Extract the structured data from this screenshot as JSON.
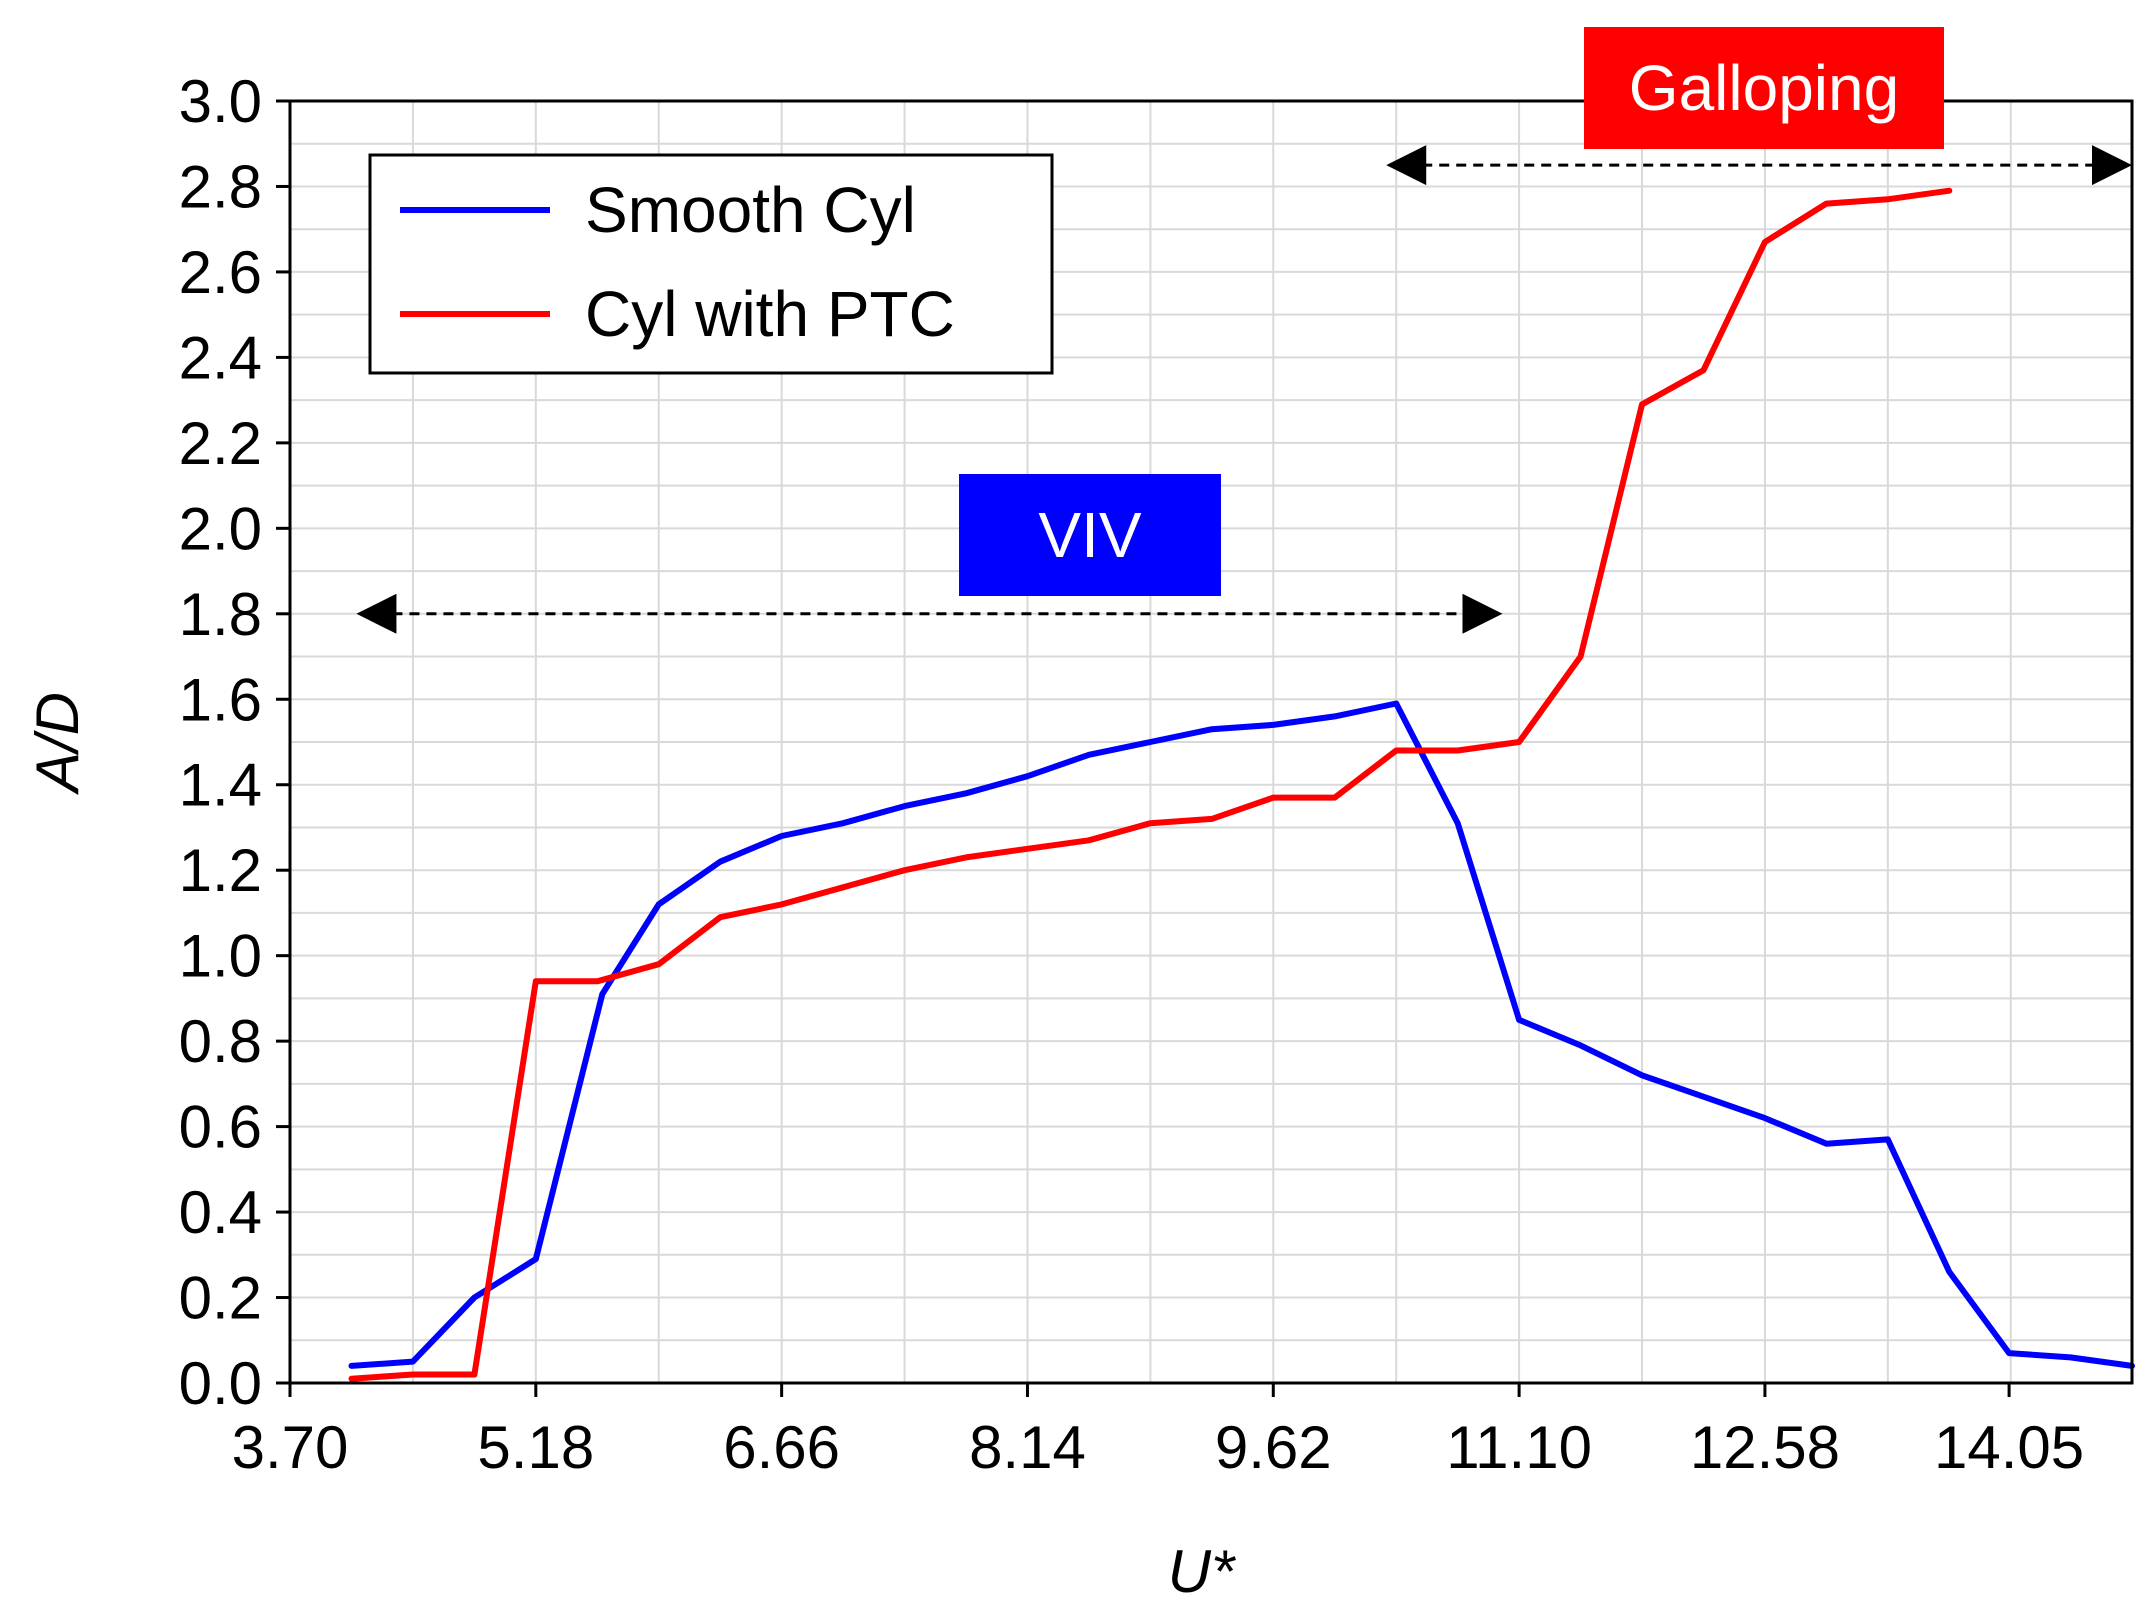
{
  "chart_data": {
    "type": "line",
    "title": "",
    "xlabel": "U*",
    "ylabel": "A/D",
    "xlim": [
      3.7,
      14.79
    ],
    "ylim": [
      0.0,
      3.0
    ],
    "grid": true,
    "x_tick_labels": [
      "3.70",
      "5.18",
      "6.66",
      "8.14",
      "9.62",
      "11.10",
      "12.58",
      "14.05"
    ],
    "x_ticks": [
      3.7,
      5.18,
      6.66,
      8.14,
      9.62,
      11.1,
      12.58,
      14.05
    ],
    "y_tick_labels": [
      "0.0",
      "0.2",
      "0.4",
      "0.6",
      "0.8",
      "1.0",
      "1.2",
      "1.4",
      "1.6",
      "1.8",
      "2.0",
      "2.2",
      "2.4",
      "2.6",
      "2.8",
      "3.0"
    ],
    "y_ticks": [
      0.0,
      0.2,
      0.4,
      0.6,
      0.8,
      1.0,
      1.2,
      1.4,
      1.6,
      1.8,
      2.0,
      2.2,
      2.4,
      2.6,
      2.8,
      3.0
    ],
    "legend_position": "top-left",
    "series": [
      {
        "name": "Smooth Cyl",
        "color": "#0000ff",
        "x": [
          4.07,
          4.44,
          4.81,
          5.18,
          5.58,
          5.92,
          6.29,
          6.66,
          7.03,
          7.4,
          7.77,
          8.14,
          8.51,
          8.88,
          9.25,
          9.62,
          9.99,
          10.36,
          10.73,
          11.1,
          11.47,
          11.84,
          12.21,
          12.58,
          12.95,
          13.32,
          13.69,
          14.05,
          14.42,
          14.79
        ],
        "y": [
          0.04,
          0.05,
          0.2,
          0.29,
          0.91,
          1.12,
          1.22,
          1.28,
          1.31,
          1.35,
          1.38,
          1.42,
          1.47,
          1.5,
          1.53,
          1.54,
          1.56,
          1.59,
          1.31,
          0.85,
          0.79,
          0.72,
          0.67,
          0.62,
          0.56,
          0.57,
          0.26,
          0.07,
          0.06,
          0.04
        ]
      },
      {
        "name": "Cyl with PTC",
        "color": "#ff0000",
        "x": [
          4.07,
          4.44,
          4.81,
          5.18,
          5.55,
          5.92,
          6.29,
          6.66,
          7.03,
          7.4,
          7.77,
          8.14,
          8.51,
          8.88,
          9.25,
          9.62,
          9.99,
          10.36,
          10.73,
          11.1,
          11.47,
          11.84,
          12.21,
          12.58,
          12.95,
          13.32,
          13.69
        ],
        "y": [
          0.01,
          0.02,
          0.02,
          0.94,
          0.94,
          0.98,
          1.09,
          1.12,
          1.16,
          1.2,
          1.23,
          1.25,
          1.27,
          1.31,
          1.32,
          1.37,
          1.37,
          1.48,
          1.48,
          1.5,
          1.7,
          2.29,
          2.37,
          2.67,
          2.76,
          2.77,
          2.79
        ]
      }
    ],
    "annotations": [
      {
        "label": "VIV",
        "background": "#0000ff",
        "text_color": "#ffffff",
        "arrow_from_x": 4.1,
        "arrow_to_x": 11.0,
        "arrow_y": 1.8
      },
      {
        "label": "Galloping",
        "background": "#ff0000",
        "text_color": "#ffffff",
        "arrow_from_x": 10.3,
        "arrow_to_x": 14.79,
        "arrow_y": 2.85
      }
    ]
  }
}
